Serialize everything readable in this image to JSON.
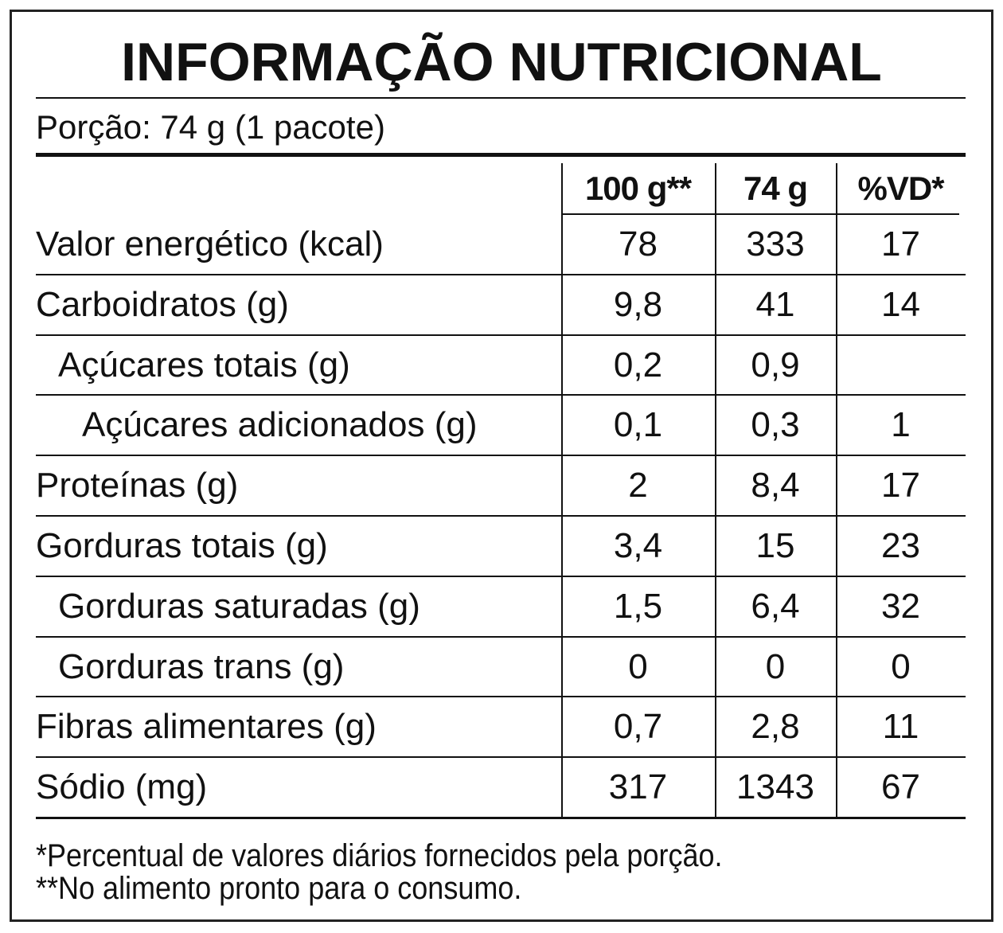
{
  "title": "INFORMAÇÃO NUTRICIONAL",
  "serving": "Porção: 74 g (1 pacote)",
  "table": {
    "header": [
      "100 g**",
      "74 g",
      "%VD*"
    ],
    "rows": [
      [
        "Valor energético (kcal)",
        "78",
        "333",
        "17"
      ],
      [
        "Carboidratos (g)",
        "9,8",
        "41",
        "14"
      ],
      [
        "Açúcares totais (g)",
        "0,2",
        "0,9",
        null
      ],
      [
        "Açúcares adicionados (g)",
        "0,1",
        "0,3",
        "1"
      ],
      [
        "Proteínas (g)",
        "2",
        "8,4",
        "17"
      ],
      [
        "Gorduras totais (g)",
        "3,4",
        "15",
        "23"
      ],
      [
        "Gorduras saturadas (g)",
        "1,5",
        "6,4",
        "32"
      ],
      [
        "Gorduras trans (g)",
        "0",
        "0",
        "0"
      ],
      [
        "Fibras alimentares (g)",
        "0,7",
        "2,8",
        "11"
      ],
      [
        "Sódio (mg)",
        "317",
        "1343",
        "67"
      ]
    ]
  },
  "footnotes": [
    "*Percentual de valores diários fornecidos pela porção.",
    "**No alimento pronto para o consumo."
  ]
}
